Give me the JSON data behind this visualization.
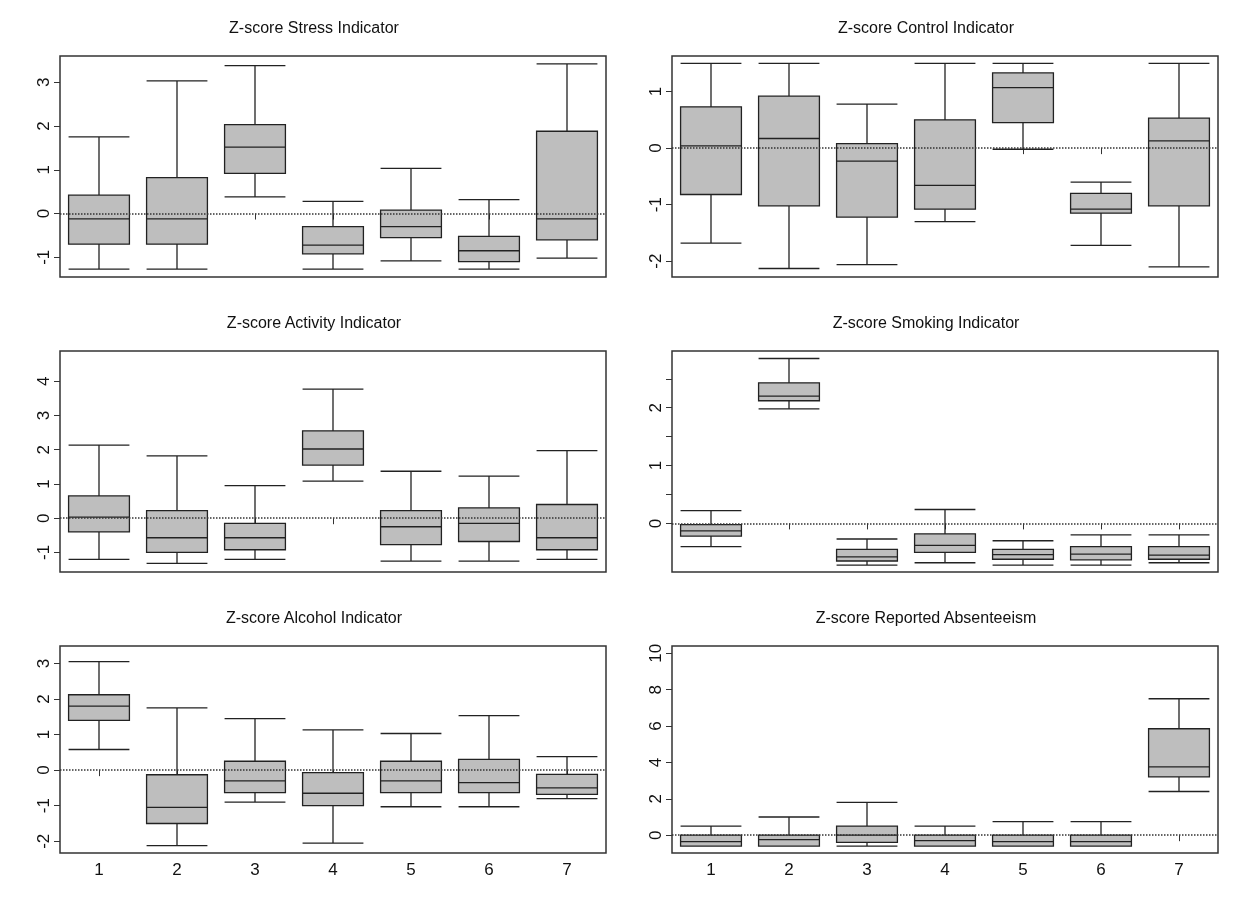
{
  "chart_data": [
    {
      "type": "box",
      "title": "Z-score Stress Indicator",
      "categories": [
        "1",
        "2",
        "3",
        "4",
        "5",
        "6",
        "7"
      ],
      "color": "#bebebe",
      "ylim": [
        -1.45,
        3.6
      ],
      "yticks": [
        -1,
        0,
        1,
        2,
        3
      ],
      "tick_labels": "y",
      "grid": false,
      "ref_lines": [
        {
          "axis": "y",
          "value": 0,
          "line_style": "dotted"
        }
      ],
      "boxes": [
        {
          "low": -1.27,
          "q1": -0.7,
          "median": -0.12,
          "q3": 0.42,
          "high": 1.75
        },
        {
          "low": -1.27,
          "q1": -0.7,
          "median": -0.12,
          "q3": 0.82,
          "high": 3.03
        },
        {
          "low": 0.38,
          "q1": 0.92,
          "median": 1.52,
          "q3": 2.03,
          "high": 3.38
        },
        {
          "low": -1.27,
          "q1": -0.92,
          "median": -0.72,
          "q3": -0.3,
          "high": 0.28
        },
        {
          "low": -1.08,
          "q1": -0.55,
          "median": -0.3,
          "q3": 0.08,
          "high": 1.03
        },
        {
          "low": -1.27,
          "q1": -1.1,
          "median": -0.85,
          "q3": -0.52,
          "high": 0.32
        },
        {
          "low": -1.02,
          "q1": -0.6,
          "median": -0.12,
          "q3": 1.88,
          "high": 3.42
        }
      ]
    },
    {
      "type": "box",
      "title": "Z-score Control Indicator",
      "categories": [
        "1",
        "2",
        "3",
        "4",
        "5",
        "6",
        "7"
      ],
      "color": "#bebebe",
      "ylim": [
        -2.28,
        1.63
      ],
      "yticks": [
        -2,
        -1,
        0,
        1
      ],
      "tick_labels": "y",
      "grid": false,
      "ref_lines": [
        {
          "axis": "y",
          "value": 0,
          "line_style": "dotted"
        }
      ],
      "boxes": [
        {
          "low": -1.68,
          "q1": -0.82,
          "median": 0.04,
          "q3": 0.73,
          "high": 1.5
        },
        {
          "low": -2.13,
          "q1": -1.02,
          "median": 0.17,
          "q3": 0.92,
          "high": 1.5
        },
        {
          "low": -2.06,
          "q1": -1.22,
          "median": -0.23,
          "q3": 0.08,
          "high": 0.78
        },
        {
          "low": -1.3,
          "q1": -1.08,
          "median": -0.66,
          "q3": 0.5,
          "high": 1.5
        },
        {
          "low": -0.02,
          "q1": 0.45,
          "median": 1.07,
          "q3": 1.33,
          "high": 1.5
        },
        {
          "low": -1.72,
          "q1": -1.15,
          "median": -1.08,
          "q3": -0.8,
          "high": -0.6
        },
        {
          "low": -2.1,
          "q1": -1.02,
          "median": 0.13,
          "q3": 0.53,
          "high": 1.5
        }
      ]
    },
    {
      "type": "box",
      "title": "Z-score Activity Indicator",
      "categories": [
        "1",
        "2",
        "3",
        "4",
        "5",
        "6",
        "7"
      ],
      "color": "#bebebe",
      "ylim": [
        -1.57,
        4.88
      ],
      "yticks": [
        -1,
        0,
        1,
        2,
        3,
        4
      ],
      "tick_labels": "y",
      "grid": false,
      "ref_lines": [
        {
          "axis": "y",
          "value": 0,
          "line_style": "dotted"
        }
      ],
      "boxes": [
        {
          "low": -1.2,
          "q1": -0.4,
          "median": 0.03,
          "q3": 0.65,
          "high": 2.13
        },
        {
          "low": -1.32,
          "q1": -1.0,
          "median": -0.57,
          "q3": 0.22,
          "high": 1.82
        },
        {
          "low": -1.2,
          "q1": -0.92,
          "median": -0.57,
          "q3": -0.15,
          "high": 0.95
        },
        {
          "low": 1.08,
          "q1": 1.55,
          "median": 2.02,
          "q3": 2.55,
          "high": 3.77
        },
        {
          "low": -1.25,
          "q1": -0.77,
          "median": -0.25,
          "q3": 0.22,
          "high": 1.37
        },
        {
          "low": -1.25,
          "q1": -0.68,
          "median": -0.15,
          "q3": 0.3,
          "high": 1.23
        },
        {
          "low": -1.2,
          "q1": -0.92,
          "median": -0.57,
          "q3": 0.4,
          "high": 1.97
        }
      ]
    },
    {
      "type": "box",
      "title": "Z-score Smoking Indicator",
      "categories": [
        "1",
        "2",
        "3",
        "4",
        "5",
        "6",
        "7"
      ],
      "color": "#bebebe",
      "ylim": [
        -0.84,
        2.98
      ],
      "yticks": [
        0,
        {
          "value": 0.5,
          "label": null
        },
        1,
        {
          "value": 1.5,
          "label": null
        },
        2,
        {
          "value": 2.5,
          "label": null
        }
      ],
      "tick_labels": "y",
      "grid": false,
      "ref_lines": [
        {
          "axis": "y",
          "value": 0,
          "line_style": "dotted"
        }
      ],
      "boxes": [
        {
          "low": -0.4,
          "q1": -0.22,
          "median": -0.13,
          "q3": -0.02,
          "high": 0.22
        },
        {
          "low": 1.98,
          "q1": 2.12,
          "median": 2.2,
          "q3": 2.43,
          "high": 2.85
        },
        {
          "low": -0.72,
          "q1": -0.65,
          "median": -0.58,
          "q3": -0.45,
          "high": -0.27
        },
        {
          "low": -0.68,
          "q1": -0.5,
          "median": -0.38,
          "q3": -0.18,
          "high": 0.24
        },
        {
          "low": -0.72,
          "q1": -0.62,
          "median": -0.54,
          "q3": -0.45,
          "high": -0.3
        },
        {
          "low": -0.72,
          "q1": -0.63,
          "median": -0.53,
          "q3": -0.4,
          "high": -0.2
        },
        {
          "low": -0.68,
          "q1": -0.62,
          "median": -0.55,
          "q3": -0.4,
          "high": -0.2
        }
      ]
    },
    {
      "type": "box",
      "title": "Z-score Alcohol Indicator",
      "categories": [
        "1",
        "2",
        "3",
        "4",
        "5",
        "6",
        "7"
      ],
      "color": "#bebebe",
      "ylim": [
        -2.33,
        3.49
      ],
      "yticks": [
        -2,
        -1,
        0,
        1,
        2,
        3
      ],
      "grid": false,
      "ref_lines": [
        {
          "axis": "y",
          "value": 0,
          "line_style": "dotted"
        }
      ],
      "boxes": [
        {
          "low": 0.58,
          "q1": 1.4,
          "median": 1.8,
          "q3": 2.12,
          "high": 3.05
        },
        {
          "low": -2.12,
          "q1": -1.5,
          "median": -1.05,
          "q3": -0.13,
          "high": 1.75
        },
        {
          "low": -0.9,
          "q1": -0.63,
          "median": -0.3,
          "q3": 0.25,
          "high": 1.45
        },
        {
          "low": -2.05,
          "q1": -1.0,
          "median": -0.65,
          "q3": -0.07,
          "high": 1.13
        },
        {
          "low": -1.03,
          "q1": -0.63,
          "median": -0.3,
          "q3": 0.25,
          "high": 1.03
        },
        {
          "low": -1.03,
          "q1": -0.63,
          "median": -0.35,
          "q3": 0.3,
          "high": 1.53
        },
        {
          "low": -0.8,
          "q1": -0.68,
          "median": -0.5,
          "q3": -0.12,
          "high": 0.38
        }
      ]
    },
    {
      "type": "box",
      "title": "Z-score Reported Absenteeism",
      "categories": [
        "1",
        "2",
        "3",
        "4",
        "5",
        "6",
        "7"
      ],
      "color": "#bebebe",
      "ylim": [
        -0.98,
        10.4
      ],
      "yticks": [
        0,
        2,
        4,
        6,
        8,
        10
      ],
      "grid": false,
      "ref_lines": [
        {
          "axis": "y",
          "value": 0,
          "line_style": "dotted"
        }
      ],
      "boxes": [
        {
          "low": -0.6,
          "q1": -0.6,
          "median": -0.35,
          "q3": 0,
          "high": 0.5
        },
        {
          "low": -0.6,
          "q1": -0.6,
          "median": -0.25,
          "q3": 0,
          "high": 1.0
        },
        {
          "low": -0.6,
          "q1": -0.4,
          "median": 0,
          "q3": 0.5,
          "high": 1.8
        },
        {
          "low": -0.6,
          "q1": -0.6,
          "median": -0.3,
          "q3": 0,
          "high": 0.5
        },
        {
          "low": -0.6,
          "q1": -0.6,
          "median": -0.35,
          "q3": 0,
          "high": 0.75
        },
        {
          "low": -0.6,
          "q1": -0.6,
          "median": -0.35,
          "q3": 0,
          "high": 0.75
        },
        {
          "low": 2.4,
          "q1": 3.2,
          "median": 3.75,
          "q3": 5.85,
          "high": 7.5
        }
      ]
    }
  ]
}
